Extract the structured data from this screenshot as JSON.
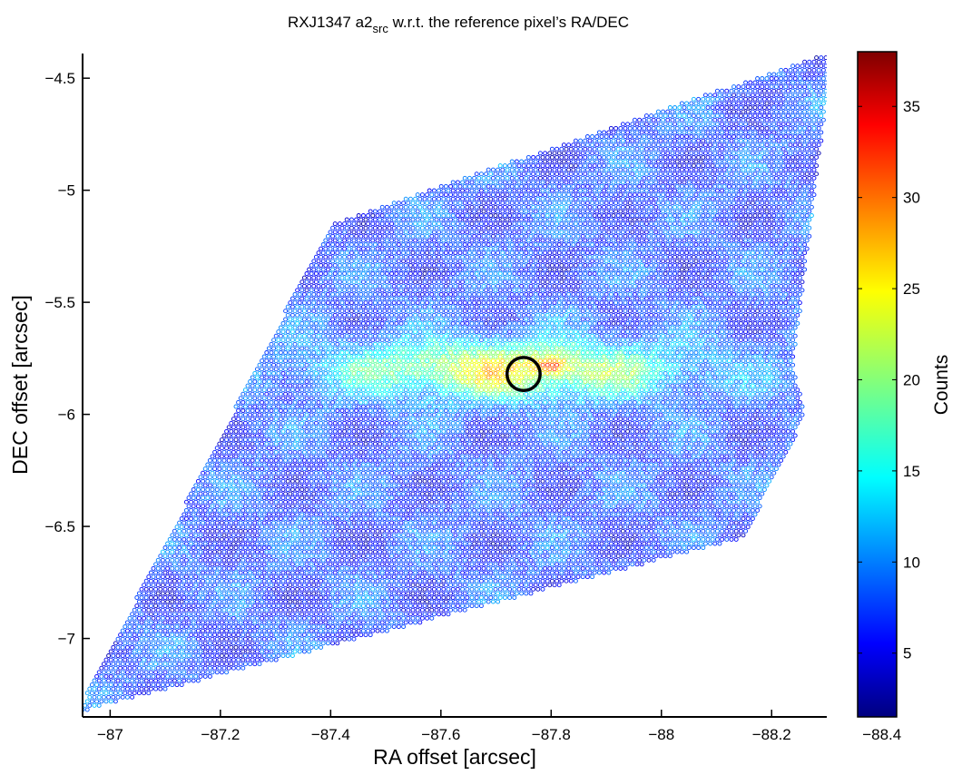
{
  "chart_data": {
    "type": "scatter",
    "title": "RXJ1347 a2",
    "title_sub": "src",
    "title_rest": " w.r.t. the reference pixel’s RA/DEC",
    "xlabel": "RA offset [arcsec]",
    "ylabel": "DEC offset [arcsec]",
    "colorbar_label": "Counts",
    "xlim": [
      -86.95,
      -88.3
    ],
    "ylim": [
      -7.35,
      -4.39
    ],
    "clim": [
      1.5,
      38
    ],
    "x_ticks": [
      -87,
      -87.2,
      -87.4,
      -87.6,
      -87.8,
      -88,
      -88.2,
      -88.4
    ],
    "x_tick_labels": [
      "−87",
      "−87.2",
      "−87.4",
      "−87.6",
      "−87.8",
      "−88",
      "−88.2",
      "−88.4"
    ],
    "y_ticks": [
      -4.5,
      -5,
      -5.5,
      -6,
      -6.5,
      -7
    ],
    "y_tick_labels": [
      "−4.5",
      "−5",
      "−5.5",
      "−6",
      "−6.5",
      "−7"
    ],
    "colorbar_ticks": [
      5,
      10,
      15,
      20,
      25,
      30,
      35
    ],
    "colorbar_tick_labels": [
      "5",
      "10",
      "15",
      "20",
      "25",
      "30",
      "35"
    ],
    "footprint_polygon": [
      [
        -86.94,
        -7.33
      ],
      [
        -87.4,
        -5.15
      ],
      [
        -88.31,
        -4.38
      ],
      [
        -88.24,
        -5.77
      ],
      [
        -88.26,
        -6.01
      ],
      [
        -88.15,
        -6.55
      ],
      [
        -86.94,
        -7.33
      ]
    ],
    "emission_peak": {
      "x": -87.8,
      "y": -5.78,
      "value": 36
    },
    "emission_band": {
      "x_min": -87.35,
      "x_max": -88.1,
      "y_center": -5.8,
      "value_center": 24
    },
    "background_level": 8,
    "reference_marker": {
      "x": -87.75,
      "y": -5.82,
      "radius": 0.03,
      "label": "reference pixel"
    }
  }
}
